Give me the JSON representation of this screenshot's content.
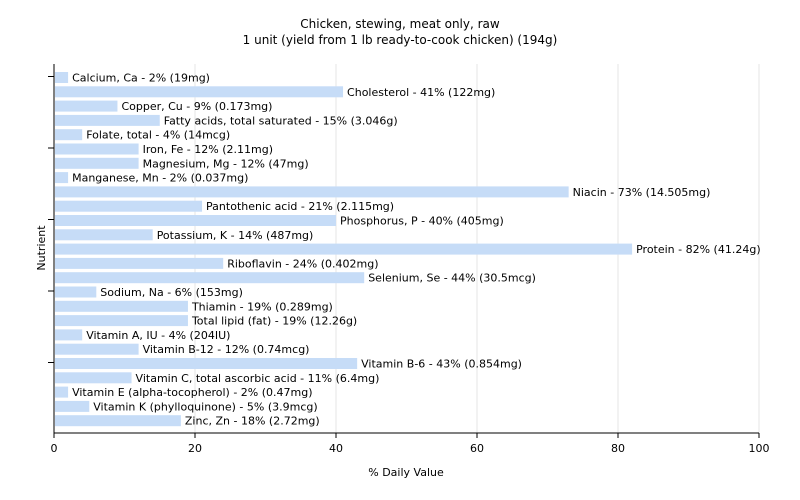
{
  "chart_data": {
    "type": "bar",
    "orientation": "horizontal",
    "title": "Chicken, stewing, meat only, raw",
    "subtitle": "1 unit (yield from 1 lb ready-to-cook chicken) (194g)",
    "xlabel": "% Daily Value",
    "ylabel": "Nutrient",
    "xlim": [
      0,
      100
    ],
    "xticks": [
      0,
      20,
      40,
      60,
      80,
      100
    ],
    "grid": true,
    "bar_color": "#c6dcf7",
    "categories": [
      "Calcium, Ca",
      "Cholesterol",
      "Copper, Cu",
      "Fatty acids, total saturated",
      "Folate, total",
      "Iron, Fe",
      "Magnesium, Mg",
      "Manganese, Mn",
      "Niacin",
      "Pantothenic acid",
      "Phosphorus, P",
      "Potassium, K",
      "Protein",
      "Riboflavin",
      "Selenium, Se",
      "Sodium, Na",
      "Thiamin",
      "Total lipid (fat)",
      "Vitamin A, IU",
      "Vitamin B-12",
      "Vitamin B-6",
      "Vitamin C, total ascorbic acid",
      "Vitamin E (alpha-tocopherol)",
      "Vitamin K (phylloquinone)",
      "Zinc, Zn"
    ],
    "values": [
      2,
      41,
      9,
      15,
      4,
      12,
      12,
      2,
      73,
      21,
      40,
      14,
      82,
      24,
      44,
      6,
      19,
      19,
      4,
      12,
      43,
      11,
      2,
      5,
      18
    ],
    "labels": [
      "Calcium, Ca - 2% (19mg)",
      "Cholesterol - 41% (122mg)",
      "Copper, Cu - 9% (0.173mg)",
      "Fatty acids, total saturated - 15% (3.046g)",
      "Folate, total - 4% (14mcg)",
      "Iron, Fe - 12% (2.11mg)",
      "Magnesium, Mg - 12% (47mg)",
      "Manganese, Mn - 2% (0.037mg)",
      "Niacin - 73% (14.505mg)",
      "Pantothenic acid - 21% (2.115mg)",
      "Phosphorus, P - 40% (405mg)",
      "Potassium, K - 14% (487mg)",
      "Protein - 82% (41.24g)",
      "Riboflavin - 24% (0.402mg)",
      "Selenium, Se - 44% (30.5mcg)",
      "Sodium, Na - 6% (153mg)",
      "Thiamin - 19% (0.289mg)",
      "Total lipid (fat) - 19% (12.26g)",
      "Vitamin A, IU - 4% (204IU)",
      "Vitamin B-12 - 12% (0.74mcg)",
      "Vitamin B-6 - 43% (0.854mg)",
      "Vitamin C, total ascorbic acid - 11% (6.4mg)",
      "Vitamin E (alpha-tocopherol) - 2% (0.47mg)",
      "Vitamin K (phylloquinone) - 5% (3.9mcg)",
      "Zinc, Zn - 18% (2.72mg)"
    ]
  }
}
